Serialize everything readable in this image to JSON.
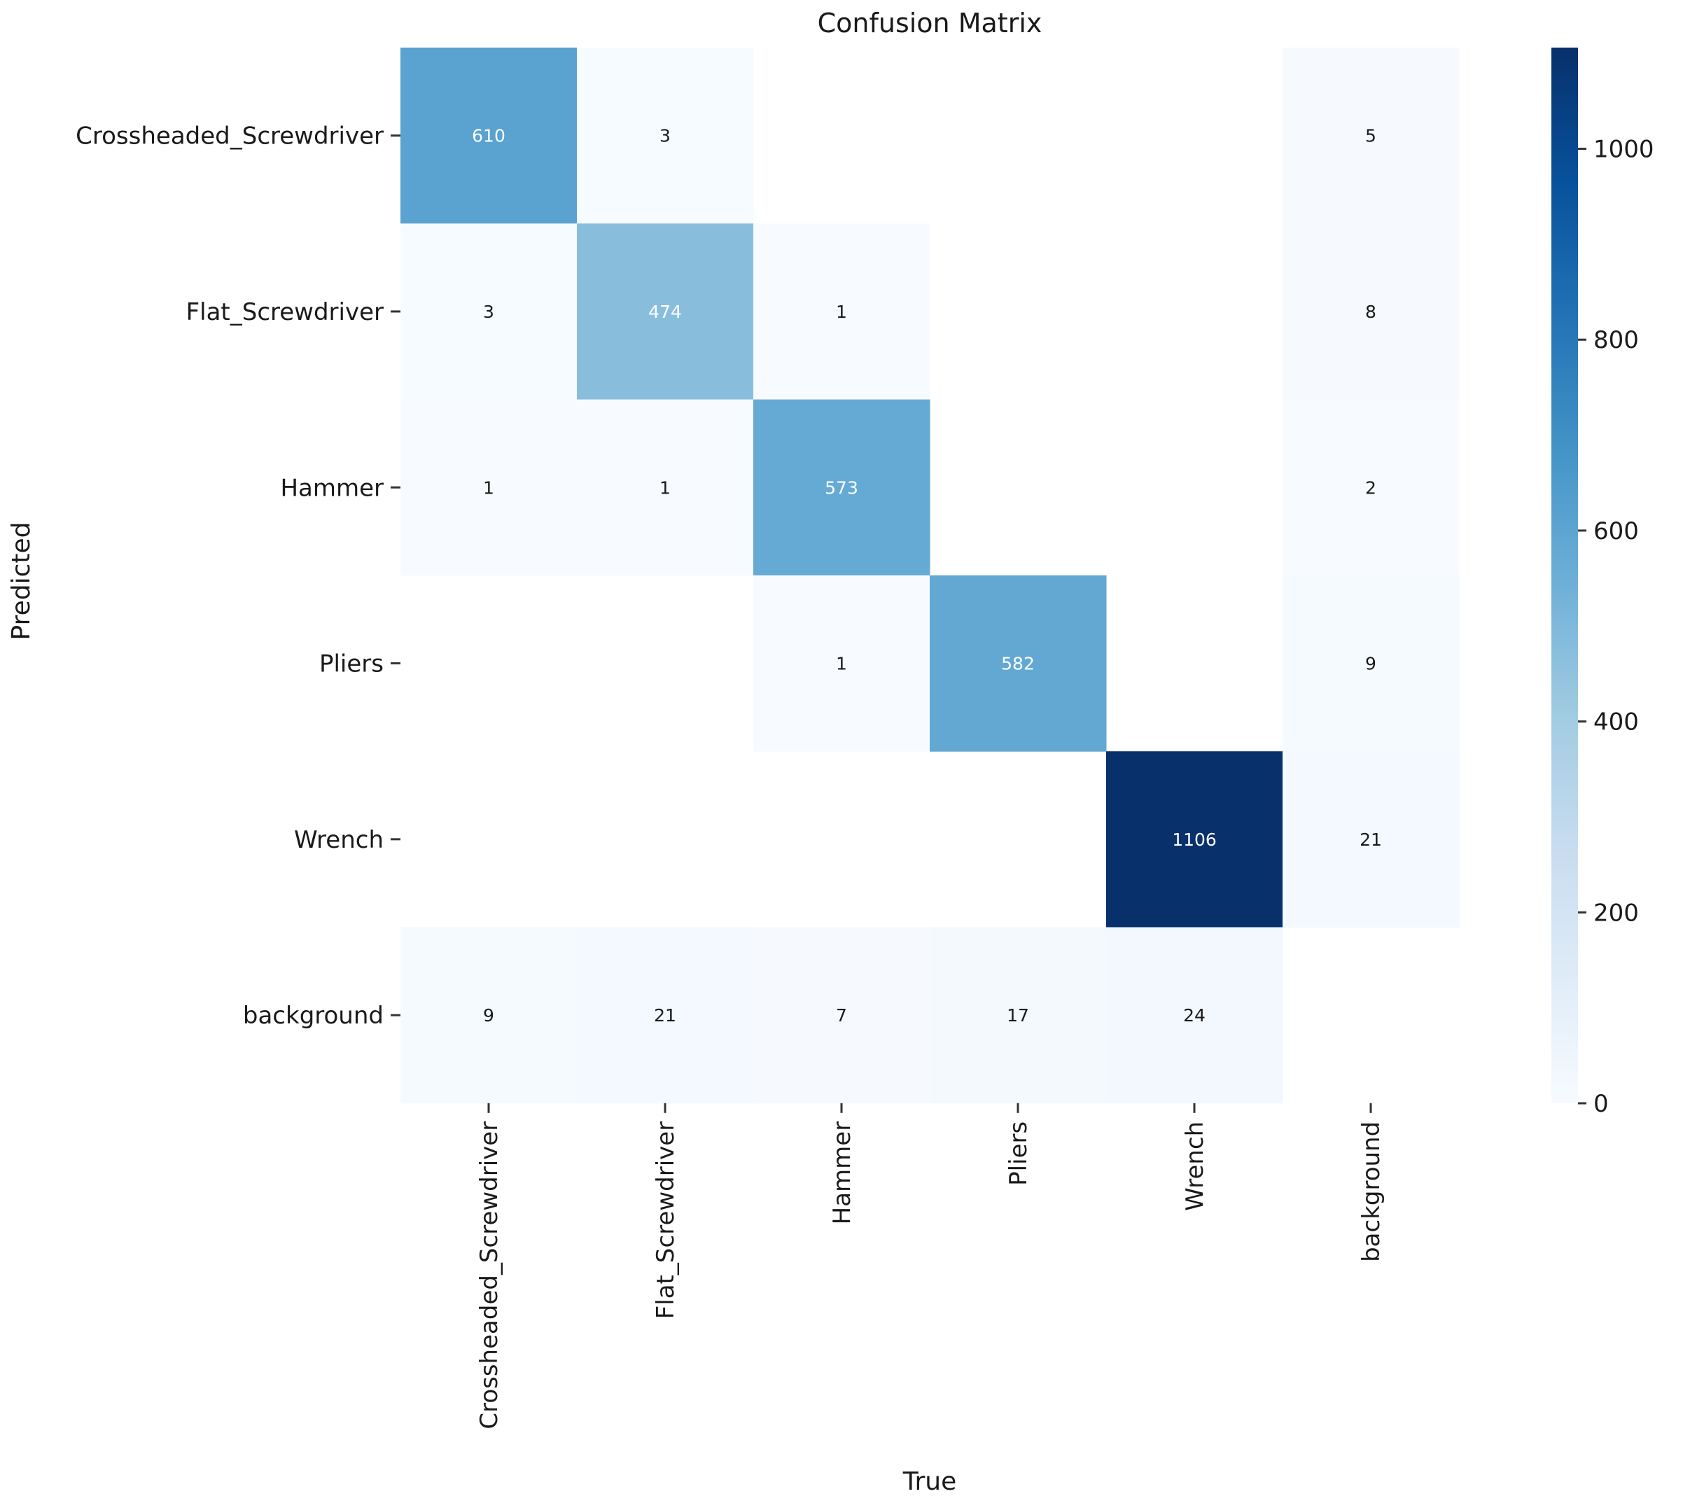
{
  "chart_data": {
    "type": "heatmap",
    "title": "Confusion Matrix",
    "xlabel": "True",
    "ylabel": "Predicted",
    "x_categories": [
      "Crossheaded_Screwdriver",
      "Flat_Screwdriver",
      "Hammer",
      "Pliers",
      "Wrench",
      "background"
    ],
    "y_categories": [
      "Crossheaded_Screwdriver",
      "Flat_Screwdriver",
      "Hammer",
      "Pliers",
      "Wrench",
      "background"
    ],
    "matrix": [
      [
        610,
        3,
        null,
        null,
        null,
        5
      ],
      [
        3,
        474,
        1,
        null,
        null,
        8
      ],
      [
        1,
        1,
        573,
        null,
        null,
        2
      ],
      [
        null,
        null,
        1,
        582,
        null,
        9
      ],
      [
        null,
        null,
        null,
        null,
        1106,
        21
      ],
      [
        9,
        21,
        7,
        17,
        24,
        null
      ]
    ],
    "colormap": "Blues",
    "colorbar": {
      "range": [
        0,
        1106
      ],
      "ticks": [
        0,
        200,
        400,
        600,
        800,
        1000
      ],
      "tick_labels": [
        "0",
        "200",
        "400",
        "600",
        "800",
        "1000"
      ]
    }
  },
  "colors": {
    "blues_scale": [
      "#f7fbff",
      "#deebf7",
      "#c6dbef",
      "#9ecae1",
      "#6baed6",
      "#4292c6",
      "#2171b5",
      "#08519c",
      "#08306b"
    ],
    "text_dark": "#1a1a1a",
    "text_light": "#ffffff"
  }
}
